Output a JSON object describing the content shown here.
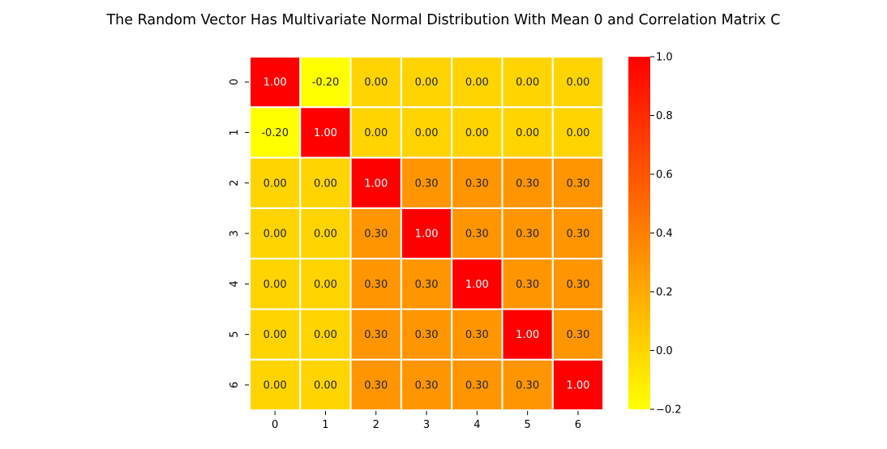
{
  "chart_data": {
    "type": "heatmap",
    "title": "The Random Vector Has Multivariate Normal Distribution With Mean 0 and Correlation Matrix C",
    "xlabel": "",
    "ylabel": "",
    "x_categories": [
      "0",
      "1",
      "2",
      "3",
      "4",
      "5",
      "6"
    ],
    "y_categories": [
      "0",
      "1",
      "2",
      "3",
      "4",
      "5",
      "6"
    ],
    "values": [
      [
        1.0,
        -0.2,
        0.0,
        0.0,
        0.0,
        0.0,
        0.0
      ],
      [
        -0.2,
        1.0,
        0.0,
        0.0,
        0.0,
        0.0,
        0.0
      ],
      [
        0.0,
        0.0,
        1.0,
        0.3,
        0.3,
        0.3,
        0.3
      ],
      [
        0.0,
        0.0,
        0.3,
        1.0,
        0.3,
        0.3,
        0.3
      ],
      [
        0.0,
        0.0,
        0.3,
        0.3,
        1.0,
        0.3,
        0.3
      ],
      [
        0.0,
        0.0,
        0.3,
        0.3,
        0.3,
        1.0,
        0.3
      ],
      [
        0.0,
        0.0,
        0.3,
        0.3,
        0.3,
        0.3,
        1.0
      ]
    ],
    "annotation_format": "0.00",
    "colormap": "autumn_r",
    "colormap_low_color": "#ffff00",
    "colormap_high_color": "#ff0000",
    "cell_border_color": "#ffffff",
    "annotation_dark_text_color": "#262626",
    "annotation_light_text_color": "#ffffff",
    "colorbar": {
      "vmin": -0.2,
      "vmax": 1.0,
      "ticks": [
        -0.2,
        0.0,
        0.2,
        0.4,
        0.6,
        0.8,
        1.0
      ],
      "tick_labels": [
        "−0.2",
        "0.0",
        "0.2",
        "0.4",
        "0.6",
        "0.8",
        "1.0"
      ]
    },
    "legend": "colorbar on the right"
  }
}
